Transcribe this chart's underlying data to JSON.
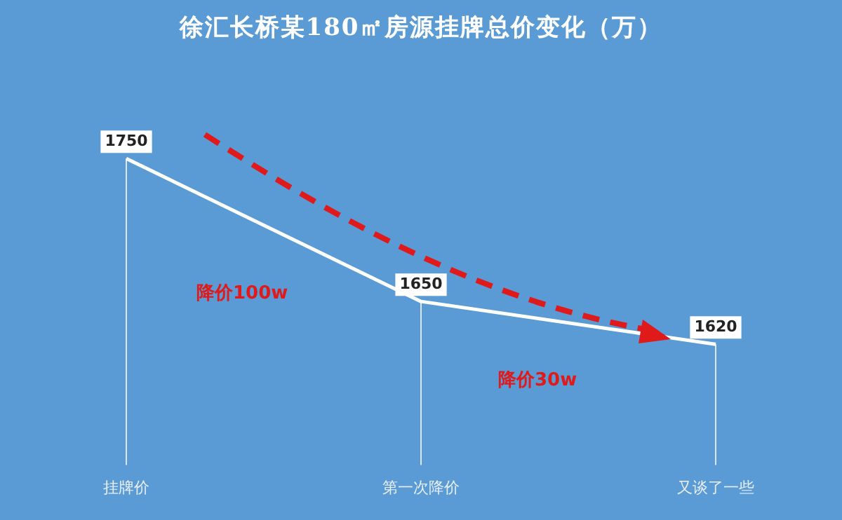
{
  "chart_data": {
    "type": "line",
    "title": "徐汇长桥某180㎡房源挂牌总价变化（万）",
    "categories": [
      "挂牌价",
      "第一次降价",
      "又谈了一些"
    ],
    "series": [
      {
        "color": "#ffffff",
        "values": [
          1750,
          1650,
          1620
        ]
      }
    ],
    "data_labels": true,
    "tick_labels": "x",
    "grid": "x",
    "legend": false,
    "marker": "none",
    "line_style": "solid",
    "annotations": [
      "降价100w",
      "降价30w"
    ]
  }
}
